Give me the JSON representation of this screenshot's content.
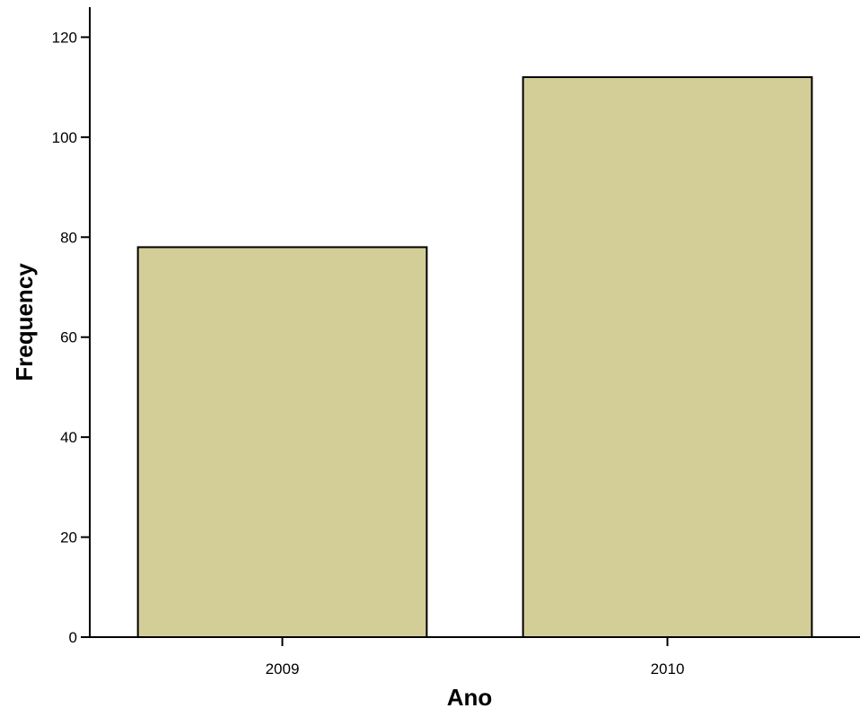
{
  "chart_data": {
    "type": "bar",
    "title": "",
    "xlabel": "Ano",
    "ylabel": "Frequency",
    "categories": [
      "2009",
      "2010"
    ],
    "values": [
      78,
      112
    ],
    "ylim": [
      0,
      126
    ],
    "yticks": [
      0,
      20,
      40,
      60,
      80,
      100,
      120
    ],
    "grid": false,
    "legend": "none",
    "colors": {
      "bar_fill": "#d3cd98",
      "bar_stroke": "#000000",
      "axis": "#000000",
      "background": "#ffffff"
    }
  }
}
